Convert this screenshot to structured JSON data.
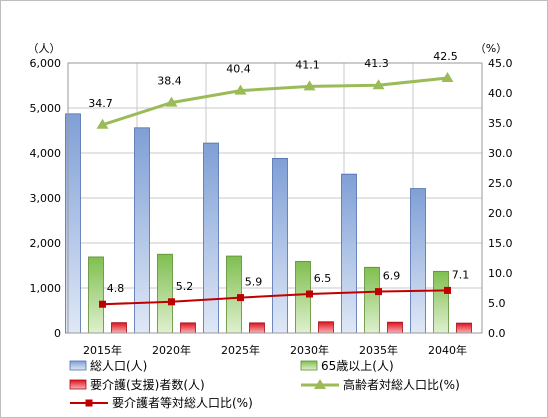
{
  "chart_data": {
    "type": "bar",
    "categories": [
      "2015年",
      "2020年",
      "2025年",
      "2030年",
      "2035年",
      "2040年"
    ],
    "left_axis": {
      "unit": "（人）",
      "ylim": [
        0,
        6000
      ],
      "ticks": [
        "0",
        "1,000",
        "2,000",
        "3,000",
        "4,000",
        "5,000",
        "6,000"
      ]
    },
    "right_axis": {
      "unit": "（%）",
      "ylim": [
        0,
        45
      ],
      "ticks": [
        "0.0",
        "5.0",
        "10.0",
        "15.0",
        "20.0",
        "25.0",
        "30.0",
        "35.0",
        "40.0",
        "45.0"
      ]
    },
    "grid": true,
    "legend_position": "bottom",
    "series": [
      {
        "name": "総人口(人)",
        "type": "bar",
        "axis": "left",
        "color": "#8eaadb",
        "values": [
          4870,
          4560,
          4220,
          3880,
          3530,
          3210
        ]
      },
      {
        "name": "65歳以上(人)",
        "type": "bar",
        "axis": "left",
        "color": "#8fc760",
        "values": [
          1690,
          1750,
          1710,
          1590,
          1460,
          1370
        ]
      },
      {
        "name": "要介護(支援)者数(人)",
        "type": "bar",
        "axis": "left",
        "color": "#e8202a",
        "values": [
          230,
          225,
          225,
          250,
          240,
          220
        ]
      },
      {
        "name": "高齢者対総人口比(%)",
        "type": "line",
        "axis": "right",
        "color": "#9bbb59",
        "values": [
          34.7,
          38.4,
          40.4,
          41.1,
          41.3,
          42.5
        ],
        "labels": [
          "34.7",
          "38.4",
          "40.4",
          "41.1",
          "41.3",
          "42.5"
        ]
      },
      {
        "name": "要介護者等対総人口比(%)",
        "type": "line",
        "axis": "right",
        "color": "#c00000",
        "values": [
          4.8,
          5.2,
          5.9,
          6.5,
          6.9,
          7.1
        ],
        "labels": [
          "4.8",
          "5.2",
          "5.9",
          "6.5",
          "6.9",
          "7.1"
        ]
      }
    ]
  }
}
